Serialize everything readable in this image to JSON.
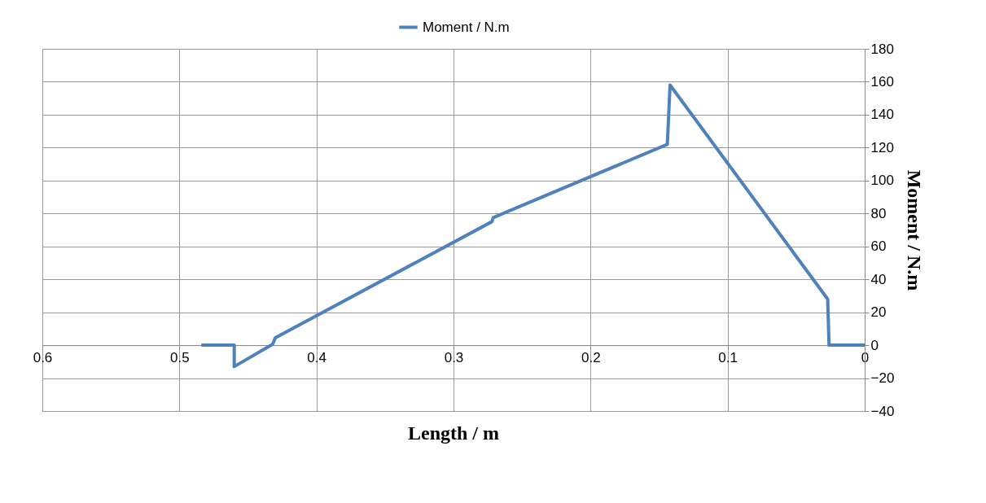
{
  "chart_data": {
    "type": "line",
    "xlabel": "Length / m",
    "ylabel": "Moment / N.m",
    "x": [
      0.484,
      0.46,
      0.46,
      0.432,
      0.43,
      0.272,
      0.271,
      0.144,
      0.142,
      0.027,
      0.026,
      0
    ],
    "series": [
      {
        "name": "Moment / N.m",
        "color": "#4f81bd",
        "values": [
          0,
          0,
          -13,
          0.5,
          4.5,
          75,
          77.5,
          122,
          158,
          28,
          0,
          0
        ]
      }
    ],
    "xlim": [
      0.6,
      0
    ],
    "xticks": [
      0.6,
      0.5,
      0.4,
      0.3,
      0.2,
      0.1,
      0
    ],
    "ylim": [
      -40,
      180
    ],
    "yticks": [
      -40,
      -20,
      0,
      20,
      40,
      60,
      80,
      100,
      120,
      140,
      160,
      180
    ],
    "grid": true,
    "legend": "top",
    "marker": "none",
    "line_style": "solid"
  }
}
